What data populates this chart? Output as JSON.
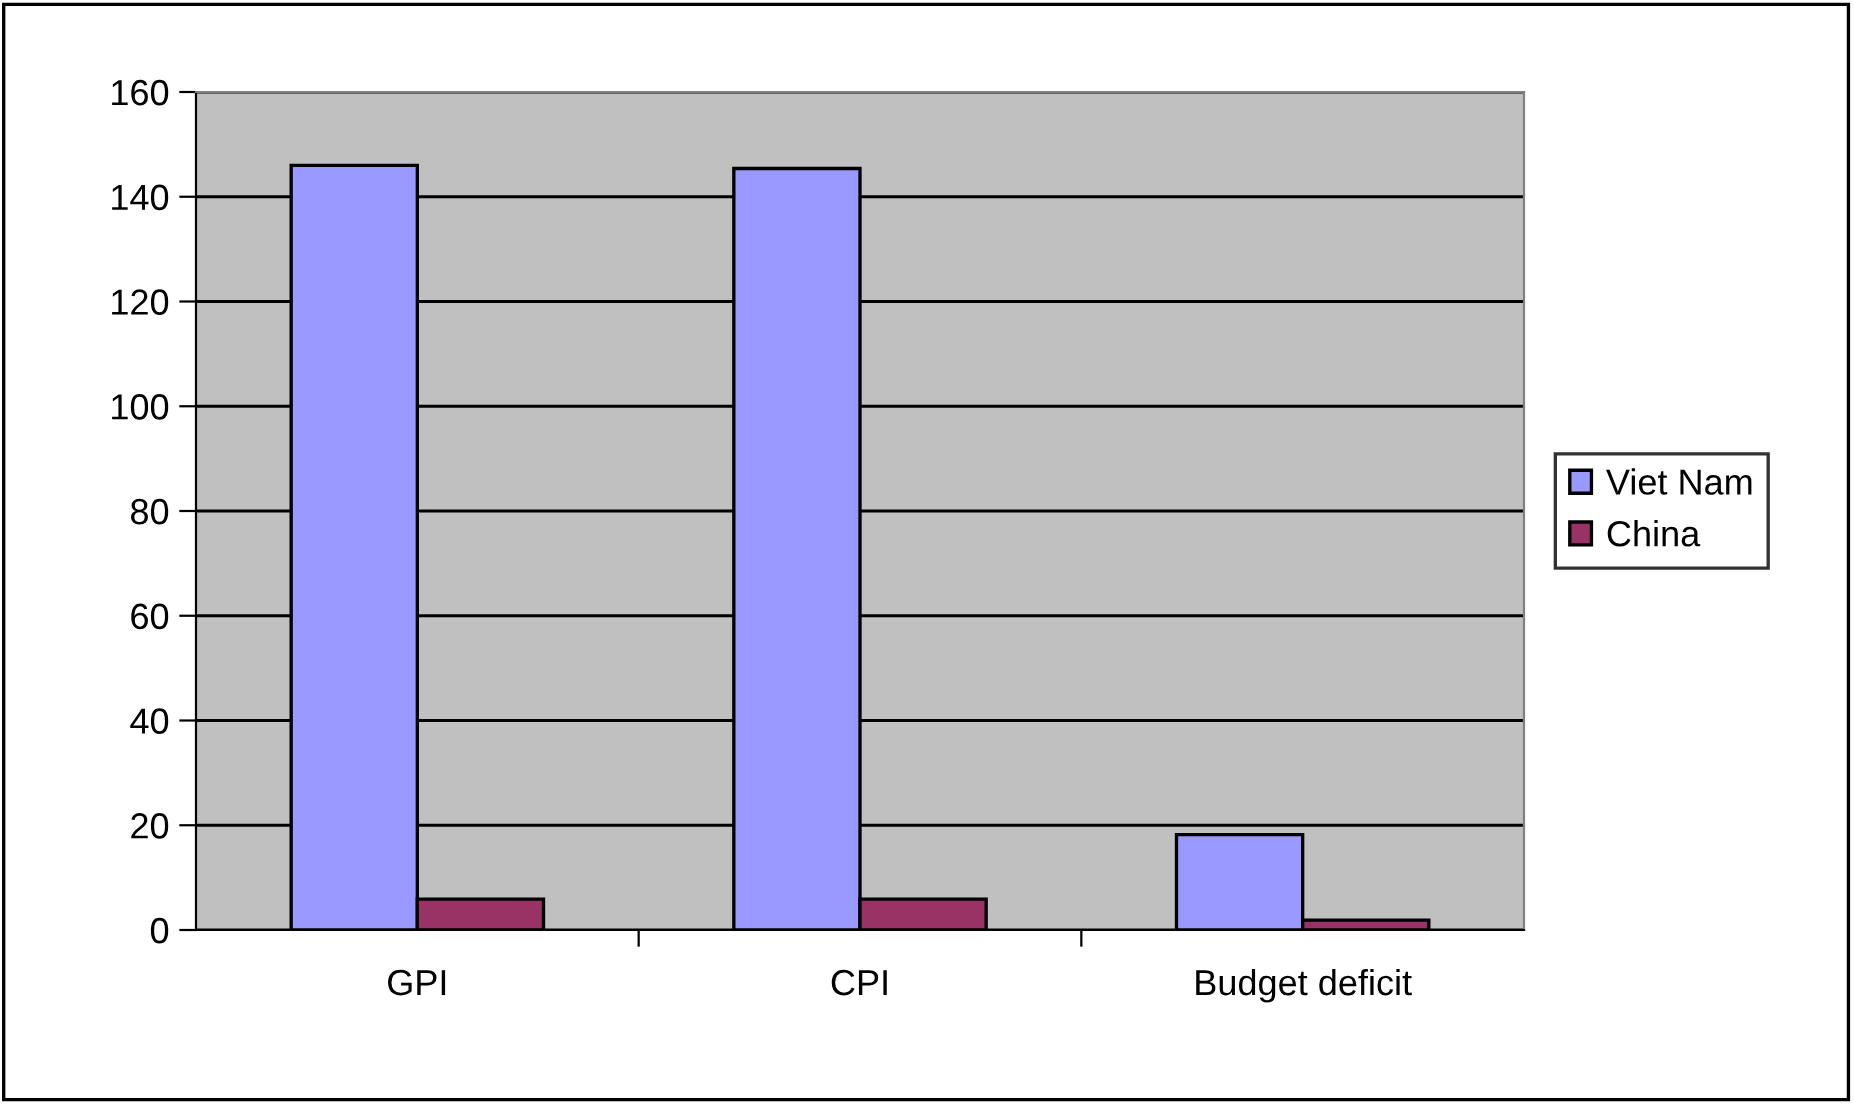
{
  "chart_data": {
    "type": "bar",
    "categories": [
      "GPI",
      "CPI",
      "Budget deficit"
    ],
    "series": [
      {
        "name": "Viet Nam",
        "color": "#9999ff",
        "values": [
          146,
          145.4,
          18.2
        ]
      },
      {
        "name": "China",
        "color": "#993366",
        "values": [
          5.9,
          5.9,
          1.9
        ]
      }
    ],
    "ylim": [
      0,
      160
    ],
    "yticks": [
      0,
      20,
      40,
      60,
      80,
      100,
      120,
      140,
      160
    ],
    "grid": "y",
    "legend": "right"
  }
}
